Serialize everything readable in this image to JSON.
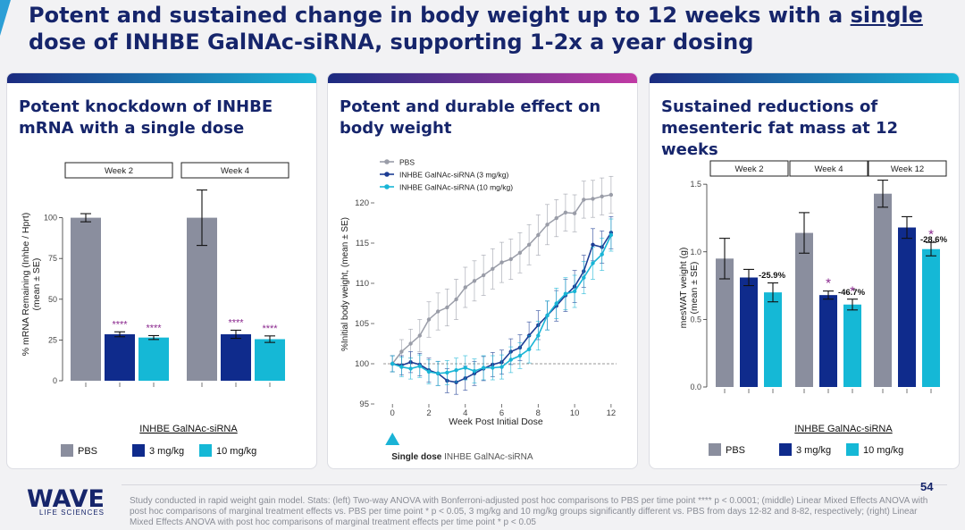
{
  "slide": {
    "title_part1": "Potent and sustained change in body weight up to 12 weeks with a ",
    "title_emph": "single",
    "title_part2": " dose of INHBE GalNAc-siRNA, supporting 1-2x a year dosing",
    "page_number": "54",
    "footnote": "Study conducted in rapid weight gain model. Stats: (left) Two-way ANOVA with Bonferroni-adjusted post hoc comparisons to PBS per time point **** p < 0.0001; (middle) Linear Mixed Effects ANOVA with post hoc comparisons of marginal treatment effects vs. PBS per time point * p < 0.05, 3 mg/kg and 10 mg/kg groups significantly different vs. PBS from days 12-82 and 8-82, respectively; (right) Linear Mixed Effects ANOVA with post hoc comparisons of marginal treatment effects per time point * p < 0.05",
    "logo": {
      "name": "WAVE",
      "sub": "LIFE SCIENCES"
    }
  },
  "panels": {
    "left": {
      "title": "Potent knockdown of INHBE mRNA with a single dose"
    },
    "middle": {
      "title": "Potent and durable effect on body weight"
    },
    "right": {
      "title": "Sustained reductions of mesenteric fat mass at 12 weeks"
    }
  },
  "colors": {
    "pbs": "#8a8e9e",
    "mg3": "#0f2b8c",
    "mg10": "#15b8d6",
    "sig": "#8b2a8f",
    "navy": "#16256b"
  },
  "chart_data": [
    {
      "type": "bar",
      "ylabel": "% mRNA Remaining (Inhbe / Hprt)",
      "ylabel2": "(mean ± SE)",
      "ylim": [
        0,
        125
      ],
      "yticks": [
        0,
        25,
        50,
        75,
        100
      ],
      "xlabel": "INHBE GalNAc-siRNA",
      "facets": [
        {
          "label": "Week 2",
          "bars": [
            {
              "series": "PBS",
              "value": 100,
              "err": 2.5,
              "sig": ""
            },
            {
              "series": "3 mg/kg",
              "value": 28.5,
              "err": 1.5,
              "sig": "****"
            },
            {
              "series": "10 mg/kg",
              "value": 26.5,
              "err": 1.2,
              "sig": "****"
            }
          ]
        },
        {
          "label": "Week 4",
          "bars": [
            {
              "series": "PBS",
              "value": 100,
              "err": 17,
              "sig": ""
            },
            {
              "series": "3 mg/kg",
              "value": 28.5,
              "err": 2.5,
              "sig": "****"
            },
            {
              "series": "10 mg/kg",
              "value": 25.5,
              "err": 2,
              "sig": "****"
            }
          ]
        }
      ],
      "legend": [
        "PBS",
        "3 mg/kg",
        "10 mg/kg"
      ]
    },
    {
      "type": "line",
      "ylabel": "%Initial body weight, (mean ± SE)",
      "xlabel": "Week Post Initial Dose",
      "xlim": [
        -0.5,
        12.3
      ],
      "ylim": [
        95,
        123
      ],
      "xticks": [
        0,
        2,
        4,
        6,
        8,
        10,
        12
      ],
      "yticks": [
        95,
        100,
        105,
        110,
        115,
        120
      ],
      "reference_line": 100,
      "series": [
        {
          "name": "PBS",
          "x": [
            0,
            0.5,
            1,
            1.5,
            2,
            2.5,
            3,
            3.5,
            4,
            4.5,
            5,
            5.5,
            6,
            6.5,
            7,
            7.5,
            8,
            8.5,
            9,
            9.5,
            10,
            10.5,
            11,
            11.5,
            12
          ],
          "y": [
            100,
            101.5,
            102.5,
            103.5,
            105.5,
            106.5,
            107,
            108,
            109.5,
            110.3,
            111,
            111.8,
            112.6,
            113,
            113.8,
            114.8,
            116,
            117.3,
            118.1,
            118.8,
            118.7,
            120.4,
            120.5,
            120.8,
            121
          ],
          "err": [
            1,
            1.5,
            1.8,
            2,
            2.2,
            2.3,
            2.3,
            2.5,
            2.5,
            2.5,
            2.5,
            2.5,
            2.5,
            2.5,
            2.5,
            2.5,
            2.5,
            2.5,
            2.3,
            2.3,
            2.3,
            2.3,
            2.3,
            2.3,
            2.3
          ]
        },
        {
          "name": "INHBE GalNAc-siRNA (3 mg/kg)",
          "x": [
            0,
            0.5,
            1,
            1.5,
            2,
            2.5,
            3,
            3.5,
            4,
            4.5,
            5,
            5.5,
            6,
            6.5,
            7,
            7.5,
            8,
            8.5,
            9,
            9.5,
            10,
            10.5,
            11,
            11.5,
            12
          ],
          "y": [
            100,
            99.8,
            100.2,
            99.9,
            99.2,
            98.8,
            97.9,
            97.7,
            98.2,
            98.8,
            99.4,
            99.9,
            100.2,
            101.5,
            102,
            103.5,
            104.8,
            106,
            107.2,
            108.5,
            109.6,
            111.5,
            114.8,
            114.5,
            116.3
          ],
          "err": [
            1,
            1.2,
            1.3,
            1.4,
            1.5,
            1.5,
            1.5,
            1.5,
            1.5,
            1.5,
            1.5,
            1.5,
            1.5,
            1.6,
            1.6,
            1.7,
            1.8,
            1.8,
            1.9,
            2,
            2,
            2,
            2,
            2,
            2
          ]
        },
        {
          "name": "INHBE GalNAc-siRNA (10 mg/kg)",
          "x": [
            0,
            0.5,
            1,
            1.5,
            2,
            2.5,
            3,
            3.5,
            4,
            4.5,
            5,
            5.5,
            6,
            6.5,
            7,
            7.5,
            8,
            8.5,
            9,
            9.5,
            10,
            10.5,
            11,
            11.5,
            12
          ],
          "y": [
            100,
            99.6,
            99.4,
            99.7,
            99,
            98.8,
            98.9,
            99.2,
            99.5,
            99.1,
            99.5,
            99.5,
            99.6,
            100.5,
            101,
            101.8,
            103.5,
            106,
            107.5,
            108.7,
            109,
            110.7,
            112.5,
            113.6,
            116
          ],
          "err": [
            1,
            1.2,
            1.3,
            1.4,
            1.5,
            1.5,
            1.5,
            1.5,
            1.5,
            1.5,
            1.5,
            1.5,
            1.5,
            1.6,
            1.6,
            1.7,
            1.8,
            1.8,
            1.9,
            2,
            2,
            2,
            2,
            2,
            2
          ]
        }
      ],
      "dose_marker": {
        "x": 0,
        "label_bold": "Single dose",
        "label_rest": " INHBE GalNAc-siRNA"
      }
    },
    {
      "type": "bar",
      "ylabel": "mesWAT weight (g)",
      "ylabel2": "(mean ± SE)",
      "ylim": [
        0,
        1.6
      ],
      "yticks": [
        0.0,
        0.5,
        1.0,
        1.5
      ],
      "xlabel": "INHBE GalNAc-siRNA",
      "facets": [
        {
          "label": "Week 2",
          "bars": [
            {
              "series": "PBS",
              "value": 0.95,
              "err": 0.15,
              "sig": ""
            },
            {
              "series": "3 mg/kg",
              "value": 0.81,
              "err": 0.06,
              "sig": ""
            },
            {
              "series": "10 mg/kg",
              "value": 0.7,
              "err": 0.07,
              "sig": ""
            }
          ],
          "annot": "-25.9%"
        },
        {
          "label": "Week 4",
          "bars": [
            {
              "series": "PBS",
              "value": 1.14,
              "err": 0.15,
              "sig": ""
            },
            {
              "series": "3 mg/kg",
              "value": 0.68,
              "err": 0.03,
              "sig": "*"
            },
            {
              "series": "10 mg/kg",
              "value": 0.61,
              "err": 0.04,
              "sig": "*"
            }
          ],
          "annot": "-46.7%"
        },
        {
          "label": "Week 12",
          "bars": [
            {
              "series": "PBS",
              "value": 1.43,
              "err": 0.1,
              "sig": ""
            },
            {
              "series": "3 mg/kg",
              "value": 1.18,
              "err": 0.08,
              "sig": ""
            },
            {
              "series": "10 mg/kg",
              "value": 1.02,
              "err": 0.05,
              "sig": "*"
            }
          ],
          "annot": "-28.6%"
        }
      ],
      "legend": [
        "PBS",
        "3 mg/kg",
        "10 mg/kg"
      ]
    }
  ]
}
